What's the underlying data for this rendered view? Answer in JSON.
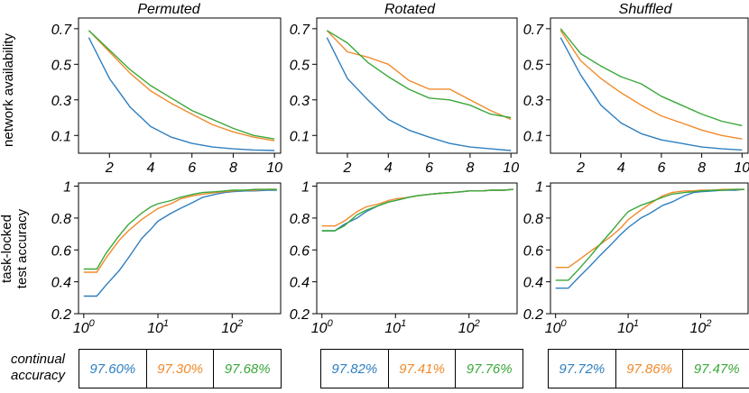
{
  "figure": {
    "ylabel_top": "network availability",
    "ylabel_bottom_line1": "task-locked",
    "ylabel_bottom_line2": "test accuracy",
    "continual_label_line1": "continual",
    "continual_label_line2": "accuracy"
  },
  "colors": {
    "blue": "#2f7fc0",
    "orange": "#f08a2c",
    "green": "#3aa83a"
  },
  "chart_data": [
    {
      "type": "line",
      "title": "Permuted",
      "x": [
        1,
        2,
        3,
        4,
        5,
        6,
        7,
        8,
        9,
        10
      ],
      "xticks": [
        2,
        4,
        6,
        8,
        10
      ],
      "yticks": [
        0.1,
        0.3,
        0.5,
        0.7
      ],
      "xlim": [
        0.5,
        10.3
      ],
      "ylim": [
        0.0,
        0.76
      ],
      "series": [
        {
          "name": "blue",
          "values": [
            0.65,
            0.42,
            0.26,
            0.15,
            0.09,
            0.055,
            0.035,
            0.025,
            0.018,
            0.015
          ]
        },
        {
          "name": "orange",
          "values": [
            0.69,
            0.57,
            0.45,
            0.35,
            0.28,
            0.22,
            0.16,
            0.12,
            0.09,
            0.07
          ]
        },
        {
          "name": "green",
          "values": [
            0.69,
            0.58,
            0.47,
            0.38,
            0.31,
            0.24,
            0.19,
            0.14,
            0.1,
            0.08
          ]
        }
      ]
    },
    {
      "type": "line",
      "title": "Rotated",
      "x": [
        1,
        2,
        3,
        4,
        5,
        6,
        7,
        8,
        9,
        10
      ],
      "xticks": [
        2,
        4,
        6,
        8,
        10
      ],
      "yticks": [
        0.1,
        0.3,
        0.5,
        0.7
      ],
      "xlim": [
        0.5,
        10.3
      ],
      "ylim": [
        0.0,
        0.76
      ],
      "series": [
        {
          "name": "blue",
          "values": [
            0.65,
            0.42,
            0.3,
            0.19,
            0.13,
            0.09,
            0.055,
            0.035,
            0.025,
            0.015
          ]
        },
        {
          "name": "orange",
          "values": [
            0.69,
            0.57,
            0.54,
            0.5,
            0.41,
            0.36,
            0.36,
            0.3,
            0.24,
            0.19
          ]
        },
        {
          "name": "green",
          "values": [
            0.69,
            0.62,
            0.51,
            0.43,
            0.36,
            0.31,
            0.3,
            0.27,
            0.22,
            0.2
          ]
        }
      ]
    },
    {
      "type": "line",
      "title": "Shuffled",
      "x": [
        1,
        2,
        3,
        4,
        5,
        6,
        7,
        8,
        9,
        10
      ],
      "xticks": [
        2,
        4,
        6,
        8,
        10
      ],
      "yticks": [
        0.1,
        0.3,
        0.5,
        0.7
      ],
      "xlim": [
        0.5,
        10.3
      ],
      "ylim": [
        0.0,
        0.76
      ],
      "series": [
        {
          "name": "blue",
          "values": [
            0.65,
            0.44,
            0.27,
            0.17,
            0.11,
            0.075,
            0.055,
            0.035,
            0.025,
            0.018
          ]
        },
        {
          "name": "orange",
          "values": [
            0.69,
            0.52,
            0.42,
            0.34,
            0.27,
            0.21,
            0.17,
            0.13,
            0.1,
            0.08
          ]
        },
        {
          "name": "green",
          "values": [
            0.7,
            0.56,
            0.49,
            0.43,
            0.39,
            0.32,
            0.27,
            0.22,
            0.18,
            0.155
          ]
        }
      ]
    },
    {
      "type": "line",
      "xscale": "log",
      "x": [
        1,
        1.5,
        2,
        3,
        4,
        6,
        8,
        10,
        15,
        20,
        30,
        40,
        60,
        80,
        100,
        150,
        200,
        300,
        400
      ],
      "xticks": [
        1,
        10,
        100
      ],
      "xticklabels": [
        "10",
        "10",
        "10"
      ],
      "xtick_exponents": [
        "0",
        "1",
        "2"
      ],
      "yticks": [
        0.2,
        0.4,
        0.6,
        0.8,
        1.0
      ],
      "yticklabels": [
        "0.2",
        "0.4",
        "0.6",
        "0.8",
        "1"
      ],
      "xlim": [
        0.85,
        450
      ],
      "ylim": [
        0.2,
        1.02
      ],
      "series": [
        {
          "name": "blue",
          "values": [
            0.31,
            0.31,
            0.38,
            0.47,
            0.55,
            0.67,
            0.73,
            0.78,
            0.83,
            0.86,
            0.9,
            0.93,
            0.95,
            0.96,
            0.965,
            0.97,
            0.97,
            0.975,
            0.975
          ]
        },
        {
          "name": "orange",
          "values": [
            0.46,
            0.46,
            0.55,
            0.66,
            0.72,
            0.79,
            0.83,
            0.86,
            0.89,
            0.92,
            0.94,
            0.95,
            0.96,
            0.965,
            0.97,
            0.975,
            0.975,
            0.98,
            0.98
          ]
        },
        {
          "name": "green",
          "values": [
            0.48,
            0.48,
            0.58,
            0.69,
            0.76,
            0.83,
            0.87,
            0.89,
            0.91,
            0.93,
            0.95,
            0.96,
            0.965,
            0.97,
            0.975,
            0.975,
            0.98,
            0.98,
            0.98
          ]
        }
      ]
    },
    {
      "type": "line",
      "xscale": "log",
      "x": [
        1,
        1.5,
        2,
        3,
        4,
        6,
        8,
        10,
        15,
        20,
        30,
        40,
        60,
        80,
        100,
        150,
        200,
        300,
        400
      ],
      "xticks": [
        1,
        10,
        100
      ],
      "xticklabels": [
        "10",
        "10",
        "10"
      ],
      "xtick_exponents": [
        "0",
        "1",
        "2"
      ],
      "yticks": [
        0.2,
        0.4,
        0.6,
        0.8,
        1.0
      ],
      "yticklabels": [
        "0.2",
        "0.4",
        "0.6",
        "0.8",
        "1"
      ],
      "xlim": [
        0.85,
        450
      ],
      "ylim": [
        0.2,
        1.02
      ],
      "series": [
        {
          "name": "blue",
          "values": [
            0.72,
            0.72,
            0.76,
            0.8,
            0.84,
            0.88,
            0.9,
            0.91,
            0.93,
            0.94,
            0.95,
            0.955,
            0.96,
            0.965,
            0.97,
            0.97,
            0.975,
            0.975,
            0.98
          ]
        },
        {
          "name": "orange",
          "values": [
            0.75,
            0.75,
            0.78,
            0.84,
            0.87,
            0.89,
            0.91,
            0.92,
            0.93,
            0.94,
            0.95,
            0.955,
            0.96,
            0.965,
            0.97,
            0.97,
            0.975,
            0.975,
            0.98
          ]
        },
        {
          "name": "green",
          "values": [
            0.72,
            0.72,
            0.75,
            0.82,
            0.85,
            0.88,
            0.9,
            0.91,
            0.93,
            0.94,
            0.95,
            0.955,
            0.96,
            0.965,
            0.97,
            0.97,
            0.975,
            0.975,
            0.98
          ]
        }
      ]
    },
    {
      "type": "line",
      "xscale": "log",
      "x": [
        1,
        1.5,
        2,
        3,
        4,
        6,
        8,
        10,
        15,
        20,
        30,
        40,
        60,
        80,
        100,
        150,
        200,
        300,
        400
      ],
      "xticks": [
        1,
        10,
        100
      ],
      "xticklabels": [
        "10",
        "10",
        "10"
      ],
      "xtick_exponents": [
        "0",
        "1",
        "2"
      ],
      "yticks": [
        0.2,
        0.4,
        0.6,
        0.8,
        1.0
      ],
      "yticklabels": [
        "0.2",
        "0.4",
        "0.6",
        "0.8",
        "1"
      ],
      "xlim": [
        0.85,
        450
      ],
      "ylim": [
        0.2,
        1.02
      ],
      "series": [
        {
          "name": "blue",
          "values": [
            0.36,
            0.36,
            0.42,
            0.5,
            0.56,
            0.64,
            0.7,
            0.74,
            0.8,
            0.83,
            0.88,
            0.9,
            0.94,
            0.96,
            0.965,
            0.97,
            0.975,
            0.975,
            0.98
          ]
        },
        {
          "name": "orange",
          "values": [
            0.49,
            0.49,
            0.53,
            0.59,
            0.63,
            0.69,
            0.74,
            0.79,
            0.85,
            0.89,
            0.94,
            0.96,
            0.97,
            0.97,
            0.975,
            0.975,
            0.98,
            0.98,
            0.98
          ]
        },
        {
          "name": "green",
          "values": [
            0.41,
            0.41,
            0.47,
            0.56,
            0.63,
            0.72,
            0.79,
            0.84,
            0.88,
            0.9,
            0.93,
            0.95,
            0.96,
            0.965,
            0.97,
            0.975,
            0.975,
            0.98,
            0.98
          ]
        }
      ]
    }
  ],
  "continual_accuracy": [
    {
      "blue": "97.60%",
      "orange": "97.30%",
      "green": "97.68%"
    },
    {
      "blue": "97.82%",
      "orange": "97.41%",
      "green": "97.76%"
    },
    {
      "blue": "97.72%",
      "orange": "97.86%",
      "green": "97.47%"
    }
  ]
}
